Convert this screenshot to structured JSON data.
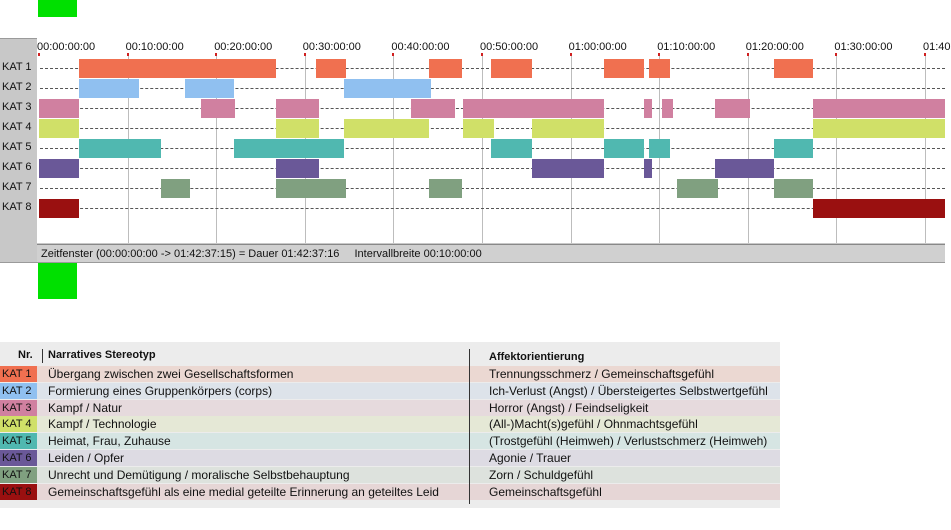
{
  "colors": {
    "kat1": "#f07050",
    "kat2": "#90c0f0",
    "kat3": "#d080a0",
    "kat4": "#d0e068",
    "kat5": "#50b8b0",
    "kat6": "#6a5898",
    "kat7": "#80a080",
    "kat8": "#9a1010",
    "marker": "#00e000"
  },
  "timeline": {
    "ticks": [
      "00:00:00:00",
      "00:10:00:00",
      "00:20:00:00",
      "00:30:00:00",
      "00:40:00:00",
      "00:50:00:00",
      "01:00:00:00",
      "01:10:00:00",
      "01:20:00:00",
      "01:30:00:00",
      "01:40"
    ],
    "total_minutes": 102.62,
    "rows": [
      {
        "label": "KAT 1",
        "color": "kat1",
        "segments": [
          [
            4.5,
            26.8
          ],
          [
            31.3,
            34.6
          ],
          [
            44.0,
            47.8
          ],
          [
            51.0,
            55.6
          ],
          [
            63.8,
            68.3
          ],
          [
            68.8,
            71.2
          ],
          [
            83.0,
            87.4
          ]
        ]
      },
      {
        "label": "KAT 2",
        "color": "kat2",
        "segments": [
          [
            4.5,
            11.3
          ],
          [
            16.5,
            22.0
          ],
          [
            34.4,
            44.2
          ]
        ]
      },
      {
        "label": "KAT 3",
        "color": "kat3",
        "segments": [
          [
            0,
            4.5
          ],
          [
            18.3,
            22.1
          ],
          [
            26.8,
            31.6
          ],
          [
            42.0,
            47.0
          ],
          [
            47.8,
            63.8
          ],
          [
            68.3,
            69.2
          ],
          [
            70.3,
            71.6
          ],
          [
            76.3,
            80.2
          ],
          [
            87.4,
            102.62
          ]
        ]
      },
      {
        "label": "KAT 4",
        "color": "kat4",
        "segments": [
          [
            0,
            4.5
          ],
          [
            26.8,
            31.6
          ],
          [
            34.4,
            44.0
          ],
          [
            47.8,
            51.3
          ],
          [
            55.6,
            63.8
          ],
          [
            87.4,
            102.62
          ]
        ]
      },
      {
        "label": "KAT 5",
        "color": "kat5",
        "segments": [
          [
            4.5,
            13.8
          ],
          [
            22.0,
            34.4
          ],
          [
            51.0,
            55.6
          ],
          [
            63.8,
            68.3
          ],
          [
            68.8,
            71.2
          ],
          [
            83.0,
            87.4
          ]
        ]
      },
      {
        "label": "KAT 6",
        "color": "kat6",
        "segments": [
          [
            0,
            4.5
          ],
          [
            26.8,
            31.6
          ],
          [
            55.6,
            63.8
          ],
          [
            68.3,
            69.2
          ],
          [
            76.3,
            83.0
          ]
        ]
      },
      {
        "label": "KAT 7",
        "color": "kat7",
        "segments": [
          [
            13.8,
            17.0
          ],
          [
            26.8,
            34.6
          ],
          [
            44.0,
            47.8
          ],
          [
            72.0,
            76.6
          ],
          [
            83.0,
            87.4
          ]
        ]
      },
      {
        "label": "KAT 8",
        "color": "kat8",
        "segments": [
          [
            0,
            4.5
          ],
          [
            87.4,
            102.62
          ]
        ]
      }
    ],
    "status_window": "Zeitfenster (00:00:00:00 -> 01:42:37:15) = Dauer 01:42:37:16",
    "status_interval": "Intervallbreite 00:10:00:00"
  },
  "legend": {
    "header_nr": "Nr.",
    "header_stereotyp": "Narratives Stereotyp",
    "header_affekt": "Affektorientierung",
    "rows": [
      {
        "kat": "KAT 1",
        "color": "kat1",
        "bg": "#ebd8d2",
        "stereotyp": "Übergang zwischen zwei Gesellschaftsformen",
        "affekt": "Trennungsschmerz / Gemeinschaftsgefühl"
      },
      {
        "kat": "KAT 2",
        "color": "kat2",
        "bg": "#dde3ea",
        "stereotyp": "Formierung eines Gruppenkörpers (corps)",
        "affekt": "Ich-Verlust (Angst) / Übersteigertes Selbstwertgefühl"
      },
      {
        "kat": "KAT 3",
        "color": "kat3",
        "bg": "#e6dadd",
        "stereotyp": "Kampf / Natur",
        "affekt": "Horror (Angst) / Feindseligkeit"
      },
      {
        "kat": "KAT 4",
        "color": "kat4",
        "bg": "#e5e8d6",
        "stereotyp": "Kampf / Technologie",
        "affekt": "(All-)Macht(s)gefühl / Ohnmachtsgefühl"
      },
      {
        "kat": "KAT 5",
        "color": "kat5",
        "bg": "#d6e5e3",
        "stereotyp": "Heimat, Frau, Zuhause",
        "affekt": "(Trostgefühl (Heimweh) / Verlustschmerz (Heimweh)"
      },
      {
        "kat": "KAT 6",
        "color": "kat6",
        "bg": "#dddbe3",
        "stereotyp": "Leiden / Opfer",
        "affekt": "Agonie / Trauer"
      },
      {
        "kat": "KAT 7",
        "color": "kat7",
        "bg": "#dde2dd",
        "stereotyp": "Unrecht und Demütigung / moralische Selbstbehauptung",
        "affekt": "Zorn / Schuldgefühl"
      },
      {
        "kat": "KAT 8",
        "color": "kat8",
        "bg": "#e6d6d6",
        "stereotyp": "Gemeinschaftsgefühl als eine medial geteilte Erinnerung an geteiltes Leid",
        "affekt": "Gemeinschaftsgefühl"
      }
    ]
  }
}
